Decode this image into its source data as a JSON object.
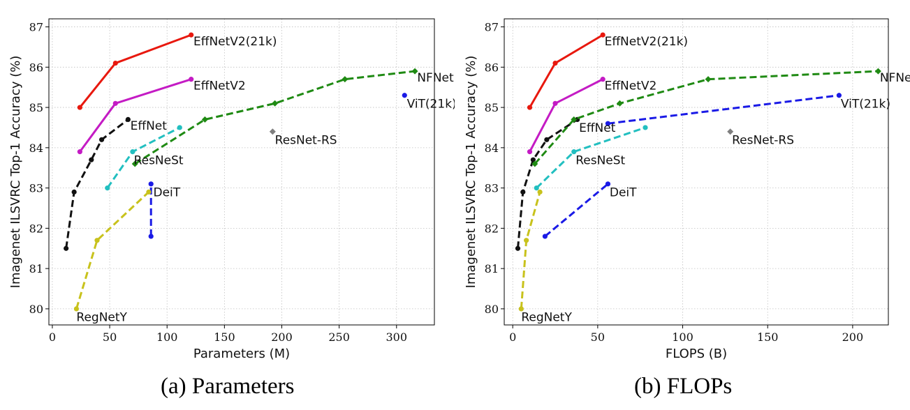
{
  "chart_data": [
    {
      "type": "line",
      "caption": "(a) Parameters",
      "xlabel": "Parameters (M)",
      "ylabel": "Imagenet ILSVRC Top-1 Accuracy (%)",
      "xlim": [
        -3,
        333
      ],
      "ylim": [
        79.6,
        87.2
      ],
      "xticks": [
        0,
        50,
        100,
        150,
        200,
        250,
        300
      ],
      "yticks": [
        80,
        81,
        82,
        83,
        84,
        85,
        86,
        87
      ],
      "grid": true,
      "series": [
        {
          "name": "EffNetV2(21k)",
          "color": "#e8180e",
          "style": "solid",
          "marker": "o",
          "x": [
            24,
            55,
            121
          ],
          "y": [
            85.0,
            86.1,
            86.8
          ]
        },
        {
          "name": "EffNetV2",
          "color": "#c41bc4",
          "style": "solid",
          "marker": "o",
          "x": [
            24,
            55,
            121
          ],
          "y": [
            83.9,
            85.1,
            85.7
          ]
        },
        {
          "name": "EffNet",
          "color": "#111111",
          "style": "dashed",
          "marker": "o",
          "x": [
            12,
            19,
            34,
            43,
            66
          ],
          "y": [
            81.5,
            82.9,
            83.7,
            84.2,
            84.7
          ]
        },
        {
          "name": "ResNeSt",
          "color": "#22bfc0",
          "style": "dashed",
          "marker": "o",
          "x": [
            48,
            70,
            111
          ],
          "y": [
            83.0,
            83.9,
            84.5
          ]
        },
        {
          "name": "NFNet",
          "color": "#1f8a13",
          "style": "dashed",
          "marker": "D",
          "x": [
            72,
            133,
            194,
            255,
            316
          ],
          "y": [
            83.6,
            84.7,
            85.1,
            85.7,
            85.9
          ]
        },
        {
          "name": "DeiT",
          "color": "#1a1ae6",
          "style": "dashed",
          "marker": "o",
          "x": [
            86,
            86
          ],
          "y": [
            81.8,
            83.1
          ]
        },
        {
          "name": "RegNetY",
          "color": "#c8c21c",
          "style": "dashed",
          "marker": "o",
          "x": [
            21,
            39,
            84
          ],
          "y": [
            80.0,
            81.7,
            82.9
          ]
        },
        {
          "name": "ViT(21k)",
          "color": "#1a1ae6",
          "style": "none",
          "marker": "o",
          "x": [
            307
          ],
          "y": [
            85.3
          ]
        },
        {
          "name": "ResNet-RS",
          "color": "#7f7f7f",
          "style": "none",
          "marker": "D",
          "x": [
            192
          ],
          "y": [
            84.4
          ]
        }
      ],
      "labels": [
        {
          "text": "EffNetV2(21k)",
          "x": 123,
          "y": 86.7
        },
        {
          "text": "EffNetV2",
          "x": 123,
          "y": 85.6
        },
        {
          "text": "EffNet",
          "x": 68,
          "y": 84.6
        },
        {
          "text": "ResNeSt",
          "x": 71,
          "y": 83.75
        },
        {
          "text": "NFNet",
          "x": 318,
          "y": 85.8
        },
        {
          "text": "DeiT",
          "x": 88,
          "y": 82.95
        },
        {
          "text": "RegNetY",
          "x": 21,
          "y": 79.85
        },
        {
          "text": "ViT(21k)",
          "x": 309,
          "y": 85.15
        },
        {
          "text": "ResNet-RS",
          "x": 194,
          "y": 84.25
        }
      ]
    },
    {
      "type": "line",
      "caption": "(b) FLOPs",
      "xlabel": "FLOPS (B)",
      "ylabel": "Imagenet ILSVRC Top-1 Accuracy (%)",
      "xlim": [
        -5,
        221
      ],
      "ylim": [
        79.6,
        87.2
      ],
      "xticks": [
        0,
        50,
        100,
        150,
        200
      ],
      "yticks": [
        80,
        81,
        82,
        83,
        84,
        85,
        86,
        87
      ],
      "grid": true,
      "series": [
        {
          "name": "EffNetV2(21k)",
          "color": "#e8180e",
          "style": "solid",
          "marker": "o",
          "x": [
            10,
            25,
            53
          ],
          "y": [
            85.0,
            86.1,
            86.8
          ]
        },
        {
          "name": "EffNetV2",
          "color": "#c41bc4",
          "style": "solid",
          "marker": "o",
          "x": [
            10,
            25,
            53
          ],
          "y": [
            83.9,
            85.1,
            85.7
          ]
        },
        {
          "name": "EffNet",
          "color": "#111111",
          "style": "dashed",
          "marker": "o",
          "x": [
            3,
            6,
            12,
            20,
            38
          ],
          "y": [
            81.5,
            82.9,
            83.7,
            84.2,
            84.7
          ]
        },
        {
          "name": "ResNeSt",
          "color": "#22bfc0",
          "style": "dashed",
          "marker": "o",
          "x": [
            14,
            36,
            78
          ],
          "y": [
            83.0,
            83.9,
            84.5
          ]
        },
        {
          "name": "NFNet",
          "color": "#1f8a13",
          "style": "dashed",
          "marker": "D",
          "x": [
            13,
            36,
            63,
            115,
            215
          ],
          "y": [
            83.6,
            84.7,
            85.1,
            85.7,
            85.9
          ]
        },
        {
          "name": "DeiT",
          "color": "#1a1ae6",
          "style": "dashed",
          "marker": "o",
          "x": [
            19,
            56
          ],
          "y": [
            81.8,
            83.1
          ]
        },
        {
          "name": "ViT(21k)",
          "color": "#1a1ae6",
          "style": "dashed",
          "marker": "o",
          "x": [
            56,
            192
          ],
          "y": [
            84.6,
            85.3
          ]
        },
        {
          "name": "RegNetY",
          "color": "#c8c21c",
          "style": "dashed",
          "marker": "o",
          "x": [
            5,
            8,
            16
          ],
          "y": [
            80.0,
            81.7,
            82.9
          ]
        },
        {
          "name": "ResNet-RS",
          "color": "#7f7f7f",
          "style": "none",
          "marker": "D",
          "x": [
            128
          ],
          "y": [
            84.4
          ]
        }
      ],
      "labels": [
        {
          "text": "EffNetV2(21k)",
          "x": 54,
          "y": 86.7
        },
        {
          "text": "EffNetV2",
          "x": 54,
          "y": 85.6
        },
        {
          "text": "EffNet",
          "x": 39,
          "y": 84.55
        },
        {
          "text": "ResNeSt",
          "x": 37,
          "y": 83.75
        },
        {
          "text": "NFNet",
          "x": 216,
          "y": 85.8
        },
        {
          "text": "DeiT",
          "x": 57,
          "y": 82.95
        },
        {
          "text": "RegNetY",
          "x": 5,
          "y": 79.85
        },
        {
          "text": "ViT(21k)",
          "x": 193,
          "y": 85.15
        },
        {
          "text": "ResNet-RS",
          "x": 129,
          "y": 84.25
        }
      ]
    }
  ]
}
